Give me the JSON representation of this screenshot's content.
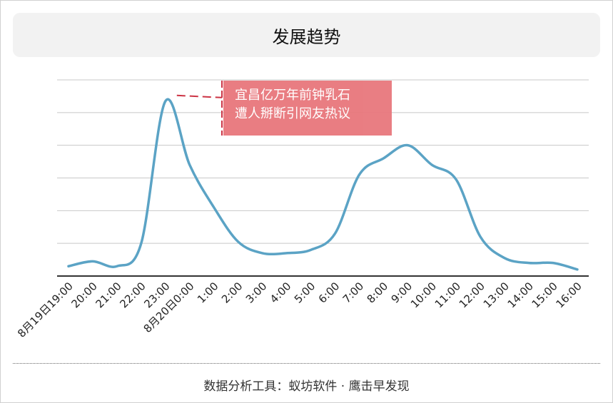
{
  "title": "发展趋势",
  "footer": "数据分析工具：蚁坊软件 · 鹰击早发现",
  "annotation": {
    "line1": "宜昌亿万年前钟乳石",
    "line2": "遭人掰断引网友热议",
    "at_category": "23:00"
  },
  "colors": {
    "line": "#5ba3c5",
    "annotation_bg": "#e8777c",
    "annotation_marker": "#cc3344",
    "grid": "#c8c8c8",
    "axis": "#333333",
    "title_bg": "#f2f2f2"
  },
  "chart_data": {
    "type": "line",
    "title": "发展趋势",
    "xlabel": "",
    "ylabel": "",
    "categories": [
      "8月19日19:00",
      "20:00",
      "21:00",
      "22:00",
      "23:00",
      "8月20日0:00",
      "1:00",
      "2:00",
      "3:00",
      "4:00",
      "5:00",
      "6:00",
      "7:00",
      "8:00",
      "9:00",
      "10:00",
      "11:00",
      "12:00",
      "13:00",
      "14:00",
      "15:00",
      "16:00"
    ],
    "values": [
      0.3,
      0.45,
      0.3,
      1.0,
      5.35,
      3.4,
      2.1,
      1.05,
      0.7,
      0.7,
      0.8,
      1.3,
      3.1,
      3.6,
      4.0,
      3.4,
      2.95,
      1.2,
      0.55,
      0.4,
      0.4,
      0.2
    ],
    "ylim": [
      0,
      6
    ],
    "grid": true,
    "y_tick_labels": false,
    "legend": false
  }
}
